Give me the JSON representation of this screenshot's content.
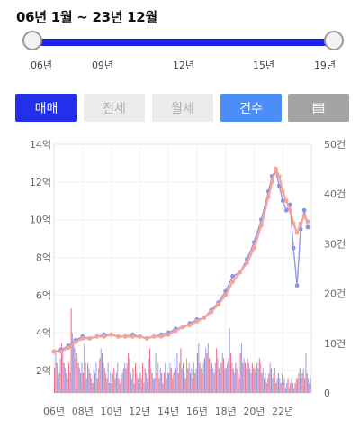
{
  "range": {
    "label": "06년 1월 ~ 23년 12월"
  },
  "slider": {
    "ticks": [
      "06년",
      "09년",
      "12년",
      "15년",
      "19년"
    ]
  },
  "buttons": {
    "sale": "매매",
    "jeonse": "전세",
    "wolse": "월세",
    "count": "건수",
    "table_icon": "grid-list-icon",
    "table_glyph": "▤"
  },
  "colors": {
    "price_line": "#8a92e6",
    "avg_line": "#f4a39a",
    "count_bar_a": "#e8506e",
    "count_bar_b": "#8a8ee8",
    "accent": "#2230ee"
  },
  "chart_data": {
    "type": "line+bar",
    "x_unit": "year",
    "x_range": [
      2006.0,
      2024.0
    ],
    "x_ticks": [
      "06년",
      "08년",
      "10년",
      "12년",
      "14년",
      "16년",
      "18년",
      "20년",
      "22년"
    ],
    "y_left_ticks": [
      "2억",
      "4억",
      "6억",
      "8억",
      "10억",
      "12억",
      "14억"
    ],
    "y_left_values": [
      2,
      4,
      6,
      8,
      10,
      12,
      14
    ],
    "y_left_range": [
      0.8,
      14
    ],
    "y_right_ticks": [
      "0",
      "10건",
      "20건",
      "30건",
      "40건",
      "50건"
    ],
    "y_right_values": [
      0,
      10,
      20,
      30,
      40,
      50
    ],
    "y_right_range": [
      0,
      50
    ],
    "grid": true,
    "series": [
      {
        "role": "price",
        "x": [
          2006.0,
          2006.5,
          2007.0,
          2007.5,
          2008.0,
          2008.5,
          2009.0,
          2009.5,
          2010.0,
          2010.5,
          2011.0,
          2011.5,
          2012.0,
          2012.5,
          2013.0,
          2013.5,
          2014.0,
          2014.5,
          2015.0,
          2015.5,
          2016.0,
          2016.5,
          2017.0,
          2017.5,
          2018.0,
          2018.5,
          2019.0,
          2019.5,
          2020.0,
          2020.5,
          2021.0,
          2021.25,
          2021.5,
          2021.75,
          2022.0,
          2022.25,
          2022.5,
          2022.75,
          2023.0,
          2023.25,
          2023.5,
          2023.75
        ],
        "values": [
          3.0,
          3.1,
          3.3,
          3.6,
          3.8,
          3.7,
          3.8,
          3.9,
          3.9,
          3.8,
          3.8,
          3.9,
          3.8,
          3.7,
          3.8,
          3.9,
          4.0,
          4.2,
          4.3,
          4.5,
          4.7,
          4.8,
          5.2,
          5.6,
          6.2,
          7.0,
          7.2,
          7.9,
          8.8,
          10.0,
          11.5,
          12.3,
          12.6,
          11.8,
          11.0,
          10.5,
          10.8,
          8.5,
          6.5,
          9.5,
          10.5,
          9.6
        ]
      },
      {
        "role": "average",
        "x": [
          2006.0,
          2006.5,
          2007.0,
          2007.5,
          2008.0,
          2008.5,
          2009.0,
          2009.5,
          2010.0,
          2010.5,
          2011.0,
          2011.5,
          2012.0,
          2012.5,
          2013.0,
          2013.5,
          2014.0,
          2014.5,
          2015.0,
          2015.5,
          2016.0,
          2016.5,
          2017.0,
          2017.5,
          2018.0,
          2018.5,
          2019.0,
          2019.5,
          2020.0,
          2020.5,
          2021.0,
          2021.25,
          2021.5,
          2021.75,
          2022.0,
          2022.25,
          2022.5,
          2022.75,
          2023.0,
          2023.25,
          2023.5,
          2023.75
        ],
        "values": [
          3.0,
          3.0,
          3.2,
          3.5,
          3.7,
          3.7,
          3.8,
          3.8,
          3.9,
          3.8,
          3.8,
          3.8,
          3.8,
          3.7,
          3.8,
          3.8,
          3.9,
          4.1,
          4.3,
          4.4,
          4.6,
          4.8,
          5.1,
          5.5,
          6.0,
          6.7,
          7.2,
          7.7,
          8.5,
          9.7,
          11.2,
          12.0,
          12.7,
          12.3,
          11.5,
          11.0,
          10.5,
          9.8,
          9.3,
          9.8,
          10.2,
          9.9
        ]
      }
    ],
    "bars": {
      "role": "count",
      "years": [
        2006,
        2007,
        2008,
        2009,
        2010,
        2011,
        2012,
        2013,
        2014,
        2015,
        2016,
        2017,
        2018,
        2019,
        2020,
        2021,
        2022,
        2023
      ],
      "monthly_counts": [
        [
          5,
          8,
          6,
          3,
          4,
          7,
          10,
          9,
          6,
          5,
          4,
          3
        ],
        [
          6,
          4,
          17,
          12,
          10,
          9,
          7,
          8,
          6,
          5,
          4,
          6
        ],
        [
          4,
          10,
          6,
          3,
          6,
          5,
          4,
          3,
          2,
          5,
          4,
          6
        ],
        [
          3,
          5,
          7,
          9,
          8,
          6,
          5,
          4,
          3,
          6,
          2,
          4
        ],
        [
          2,
          4,
          5,
          3,
          4,
          6,
          3,
          2,
          3,
          4,
          5,
          6
        ],
        [
          5,
          6,
          8,
          7,
          4,
          3,
          5,
          2,
          6,
          4,
          3,
          2
        ],
        [
          4,
          3,
          6,
          2,
          5,
          4,
          3,
          7,
          9,
          5,
          4,
          3
        ],
        [
          3,
          8,
          4,
          6,
          3,
          5,
          4,
          2,
          4,
          6,
          3,
          4
        ],
        [
          4,
          6,
          5,
          3,
          4,
          7,
          5,
          8,
          4,
          6,
          9,
          5
        ],
        [
          6,
          4,
          3,
          7,
          5,
          6,
          4,
          5,
          3,
          6,
          4,
          5
        ],
        [
          8,
          10,
          6,
          5,
          4,
          6,
          7,
          9,
          8,
          10,
          7,
          5
        ],
        [
          6,
          5,
          4,
          6,
          9,
          7,
          5,
          4,
          6,
          8,
          7,
          5
        ],
        [
          5,
          6,
          7,
          13,
          8,
          6,
          5,
          4,
          6,
          5,
          4,
          3
        ],
        [
          8,
          10,
          6,
          7,
          6,
          5,
          7,
          6,
          5,
          4,
          6,
          5
        ],
        [
          5,
          4,
          6,
          5,
          7,
          6,
          4,
          5,
          3,
          4,
          2,
          3
        ],
        [
          4,
          6,
          5,
          3,
          4,
          5,
          2,
          3,
          4,
          3,
          2,
          4
        ],
        [
          2,
          3,
          1,
          2,
          3,
          1,
          2,
          3,
          2,
          1,
          2,
          3
        ],
        [
          3,
          4,
          5,
          3,
          4,
          5,
          3,
          8,
          4,
          3,
          2,
          3
        ]
      ]
    }
  }
}
